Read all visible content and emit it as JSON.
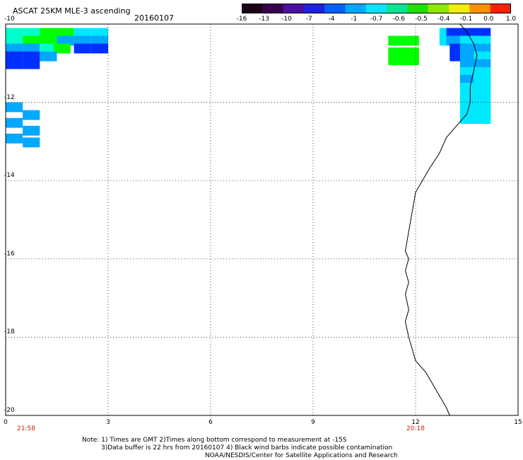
{
  "title": "ASCAT 25KM MLE-3 ascending",
  "date": "20160107",
  "colorbar": {
    "ticks": [
      "-16",
      "-13",
      "-10",
      "-7",
      "-4",
      "-1",
      "-0.7",
      "-0.6",
      "-0.5",
      "-0.4",
      "-0.1",
      "0.0",
      "1.0"
    ],
    "colors": [
      "#1a0018",
      "#3a0050",
      "#4a10a0",
      "#2020e0",
      "#0060ff",
      "#00a8ff",
      "#00e8ff",
      "#00e890",
      "#20e000",
      "#90e800",
      "#f0f000",
      "#ff9000",
      "#ff2000"
    ]
  },
  "axes": {
    "y_ticks": [
      "-10",
      "-12",
      "-14",
      "-16",
      "-18",
      "-20"
    ],
    "x_ticks": [
      "0",
      "3",
      "6",
      "9",
      "12",
      "15"
    ],
    "x_range": [
      0,
      15
    ],
    "y_range": [
      -20,
      -10
    ],
    "grid": true
  },
  "time_labels": [
    {
      "text": "21:58",
      "x": 0.6
    },
    {
      "text": "20:18",
      "x": 12.0
    }
  ],
  "notes": [
    "Note: 1) Times are GMT 2)Times along bottom correspond to measurement at -15S",
    "3)Data buffer is 22 hrs from 20160107 4) Black wind barbs indicate possible contamination",
    "NOAA/NESDIS/Center for Satellite Applications and Research"
  ],
  "map_data": {
    "cell_colors": {
      "g": "#00ff00",
      "lb": "#00a8ff",
      "cy": "#00e8ff",
      "bl": "#0030ff",
      "tq": "#00ffcc"
    },
    "cells": [
      {
        "c": "tq",
        "lon": 0.0,
        "lat": -10.1
      },
      {
        "c": "tq",
        "lon": 0.5,
        "lat": -10.1
      },
      {
        "c": "g",
        "lon": 1.0,
        "lat": -10.1
      },
      {
        "c": "g",
        "lon": 1.5,
        "lat": -10.1
      },
      {
        "c": "cy",
        "lon": 2.0,
        "lat": -10.1
      },
      {
        "c": "cy",
        "lon": 2.5,
        "lat": -10.1
      },
      {
        "c": "tq",
        "lon": 0.0,
        "lat": -10.3
      },
      {
        "c": "g",
        "lon": 0.5,
        "lat": -10.3
      },
      {
        "c": "g",
        "lon": 1.0,
        "lat": -10.3
      },
      {
        "c": "lb",
        "lon": 1.5,
        "lat": -10.3
      },
      {
        "c": "lb",
        "lon": 2.0,
        "lat": -10.3
      },
      {
        "c": "lb",
        "lon": 2.5,
        "lat": -10.3
      },
      {
        "c": "lb",
        "lon": 0.0,
        "lat": -10.5
      },
      {
        "c": "lb",
        "lon": 0.5,
        "lat": -10.5
      },
      {
        "c": "tq",
        "lon": 1.0,
        "lat": -10.5
      },
      {
        "c": "g",
        "lon": 1.4,
        "lat": -10.5
      },
      {
        "c": "bl",
        "lon": 2.0,
        "lat": -10.5
      },
      {
        "c": "bl",
        "lon": 2.5,
        "lat": -10.5
      },
      {
        "c": "bl",
        "lon": 0.0,
        "lat": -10.7
      },
      {
        "c": "bl",
        "lon": 0.5,
        "lat": -10.7
      },
      {
        "c": "lb",
        "lon": 1.0,
        "lat": -10.7
      },
      {
        "c": "bl",
        "lon": 0.0,
        "lat": -10.9
      },
      {
        "c": "bl",
        "lon": 0.5,
        "lat": -10.9
      },
      {
        "c": "lb",
        "lon": 0.0,
        "lat": -12.0
      },
      {
        "c": "lb",
        "lon": 0.0,
        "lat": -12.4
      },
      {
        "c": "lb",
        "lon": 0.0,
        "lat": -12.8
      },
      {
        "c": "lb",
        "lon": 0.5,
        "lat": -12.2
      },
      {
        "c": "lb",
        "lon": 0.5,
        "lat": -12.6
      },
      {
        "c": "lb",
        "lon": 0.5,
        "lat": -12.9
      },
      {
        "c": "g",
        "lon": 11.2,
        "lat": -10.3
      },
      {
        "c": "g",
        "lon": 11.6,
        "lat": -10.3
      },
      {
        "c": "g",
        "lon": 11.2,
        "lat": -10.6
      },
      {
        "c": "g",
        "lon": 11.6,
        "lat": -10.6
      },
      {
        "c": "g",
        "lon": 11.2,
        "lat": -10.8
      },
      {
        "c": "g",
        "lon": 11.6,
        "lat": -10.8
      },
      {
        "c": "cy",
        "lon": 12.7,
        "lat": -10.1
      },
      {
        "c": "bl",
        "lon": 12.9,
        "lat": -10.1
      },
      {
        "c": "bl",
        "lon": 13.3,
        "lat": -10.1
      },
      {
        "c": "bl",
        "lon": 13.7,
        "lat": -10.1
      },
      {
        "c": "cy",
        "lon": 12.7,
        "lat": -10.3
      },
      {
        "c": "lb",
        "lon": 12.9,
        "lat": -10.3
      },
      {
        "c": "cy",
        "lon": 13.3,
        "lat": -10.3
      },
      {
        "c": "cy",
        "lon": 13.7,
        "lat": -10.3
      },
      {
        "c": "bl",
        "lon": 13.0,
        "lat": -10.5
      },
      {
        "c": "lb",
        "lon": 13.3,
        "lat": -10.5
      },
      {
        "c": "lb",
        "lon": 13.7,
        "lat": -10.5
      },
      {
        "c": "bl",
        "lon": 13.0,
        "lat": -10.7
      },
      {
        "c": "lb",
        "lon": 13.3,
        "lat": -10.7
      },
      {
        "c": "cy",
        "lon": 13.7,
        "lat": -10.7
      },
      {
        "c": "lb",
        "lon": 13.3,
        "lat": -10.9
      },
      {
        "c": "lb",
        "lon": 13.7,
        "lat": -10.9
      },
      {
        "c": "cy",
        "lon": 13.3,
        "lat": -11.1
      },
      {
        "c": "cy",
        "lon": 13.7,
        "lat": -11.1
      },
      {
        "c": "lb",
        "lon": 13.3,
        "lat": -11.3
      },
      {
        "c": "cy",
        "lon": 13.7,
        "lat": -11.3
      },
      {
        "c": "cy",
        "lon": 13.3,
        "lat": -11.5
      },
      {
        "c": "cy",
        "lon": 13.7,
        "lat": -11.5
      },
      {
        "c": "cy",
        "lon": 13.3,
        "lat": -11.7
      },
      {
        "c": "cy",
        "lon": 13.7,
        "lat": -11.7
      },
      {
        "c": "cy",
        "lon": 13.3,
        "lat": -11.9
      },
      {
        "c": "cy",
        "lon": 13.7,
        "lat": -11.9
      },
      {
        "c": "cy",
        "lon": 13.3,
        "lat": -12.1
      },
      {
        "c": "cy",
        "lon": 13.7,
        "lat": -12.1
      },
      {
        "c": "cy",
        "lon": 13.3,
        "lat": -12.3
      },
      {
        "c": "cy",
        "lon": 13.7,
        "lat": -12.3
      }
    ],
    "coastline": [
      [
        13.3,
        -10.0
      ],
      [
        13.5,
        -10.2
      ],
      [
        13.7,
        -10.5
      ],
      [
        13.8,
        -10.8
      ],
      [
        13.7,
        -11.2
      ],
      [
        13.6,
        -11.6
      ],
      [
        13.6,
        -12.0
      ],
      [
        13.5,
        -12.3
      ],
      [
        13.2,
        -12.6
      ],
      [
        12.9,
        -12.9
      ],
      [
        12.7,
        -13.3
      ],
      [
        12.4,
        -13.7
      ],
      [
        12.2,
        -14.0
      ],
      [
        12.0,
        -14.3
      ],
      [
        11.9,
        -14.8
      ],
      [
        11.8,
        -15.3
      ],
      [
        11.7,
        -15.8
      ],
      [
        11.8,
        -16.0
      ],
      [
        11.7,
        -16.3
      ],
      [
        11.8,
        -16.6
      ],
      [
        11.7,
        -16.9
      ],
      [
        11.8,
        -17.3
      ],
      [
        11.7,
        -17.6
      ],
      [
        11.8,
        -18.0
      ],
      [
        11.9,
        -18.3
      ],
      [
        12.0,
        -18.6
      ],
      [
        12.3,
        -18.9
      ],
      [
        12.5,
        -19.2
      ],
      [
        12.7,
        -19.5
      ],
      [
        12.9,
        -19.8
      ],
      [
        13.0,
        -20.0
      ]
    ]
  }
}
